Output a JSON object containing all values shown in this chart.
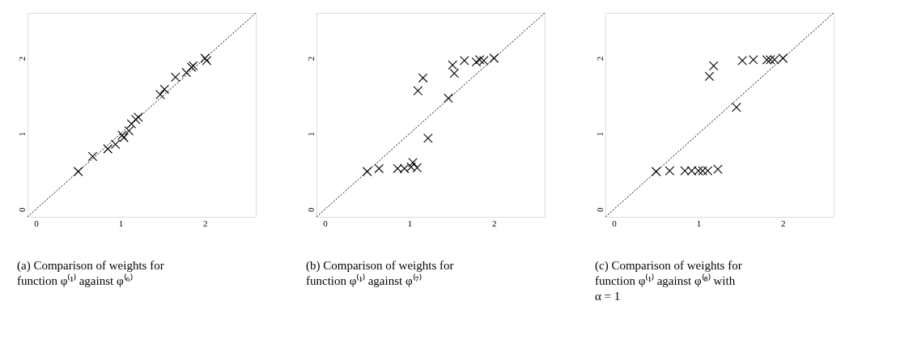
{
  "chart_data": [
    {
      "type": "scatter",
      "xlim": [
        -0.1,
        2.6
      ],
      "ylim": [
        -0.1,
        2.6
      ],
      "xticks": [
        0,
        1,
        2
      ],
      "yticks": [
        0,
        1,
        2
      ],
      "grid": false,
      "marker": "cross",
      "annotations": [
        "(a) Comparison of weights for function φ⁽¹⁾ against φ⁽⁶⁾"
      ],
      "series": [
        {
          "type": "line",
          "marker": "none",
          "color": "#000000",
          "line_style": "dotted",
          "x": [
            -0.1,
            2.6
          ],
          "values": [
            -0.1,
            2.6
          ]
        },
        {
          "color": "#000000",
          "x": [
            0.5,
            0.67,
            0.85,
            0.94,
            1.02,
            1.04,
            1.1,
            1.13,
            1.18,
            1.21,
            1.47,
            1.52,
            1.65,
            1.78,
            1.84,
            1.86,
            2.0,
            2.02
          ],
          "values": [
            0.5,
            0.7,
            0.8,
            0.86,
            0.98,
            0.95,
            1.04,
            1.13,
            1.19,
            1.22,
            1.52,
            1.59,
            1.75,
            1.81,
            1.88,
            1.9,
            2.0,
            1.97
          ]
        }
      ]
    },
    {
      "type": "scatter",
      "xlim": [
        -0.1,
        2.6
      ],
      "ylim": [
        -0.1,
        2.6
      ],
      "xticks": [
        0,
        1,
        2
      ],
      "yticks": [
        0,
        1,
        2
      ],
      "grid": false,
      "marker": "cross",
      "annotations": [
        "(b) Comparison of weights for function φ⁽¹⁾ against φ⁽⁷⁾"
      ],
      "series": [
        {
          "type": "line",
          "marker": "none",
          "color": "#000000",
          "line_style": "dotted",
          "x": [
            -0.1,
            2.6
          ],
          "values": [
            -0.1,
            2.6
          ]
        },
        {
          "color": "#000000",
          "x": [
            0.5,
            0.64,
            0.86,
            0.94,
            1.02,
            1.04,
            1.09,
            1.1,
            1.16,
            1.22,
            1.46,
            1.51,
            1.53,
            1.65,
            1.79,
            1.83,
            1.88,
            2.0
          ],
          "values": [
            0.5,
            0.54,
            0.54,
            0.54,
            0.56,
            0.62,
            0.55,
            1.57,
            1.74,
            0.94,
            1.47,
            1.91,
            1.8,
            1.97,
            1.95,
            1.98,
            1.97,
            2.0
          ]
        }
      ]
    },
    {
      "type": "scatter",
      "xlim": [
        -0.1,
        2.6
      ],
      "ylim": [
        -0.1,
        2.6
      ],
      "xticks": [
        0,
        1,
        2
      ],
      "yticks": [
        0,
        1,
        2
      ],
      "grid": false,
      "marker": "cross",
      "annotations": [
        "(c) Comparison of weights for function φ⁽¹⁾ against φ⁽⁸⁾ with α = 1"
      ],
      "series": [
        {
          "type": "line",
          "marker": "none",
          "color": "#000000",
          "line_style": "dotted",
          "x": [
            -0.1,
            2.6
          ],
          "values": [
            -0.1,
            2.6
          ]
        },
        {
          "color": "#000000",
          "x": [
            0.5,
            0.66,
            0.84,
            0.92,
            1.0,
            1.05,
            1.11,
            1.23,
            1.13,
            1.18,
            1.45,
            1.52,
            1.65,
            1.81,
            1.85,
            1.9,
            2.0
          ],
          "values": [
            0.5,
            0.51,
            0.51,
            0.51,
            0.51,
            0.51,
            0.51,
            0.53,
            1.76,
            1.9,
            1.35,
            1.97,
            1.98,
            1.98,
            1.98,
            1.98,
            2.0
          ]
        }
      ]
    }
  ]
}
